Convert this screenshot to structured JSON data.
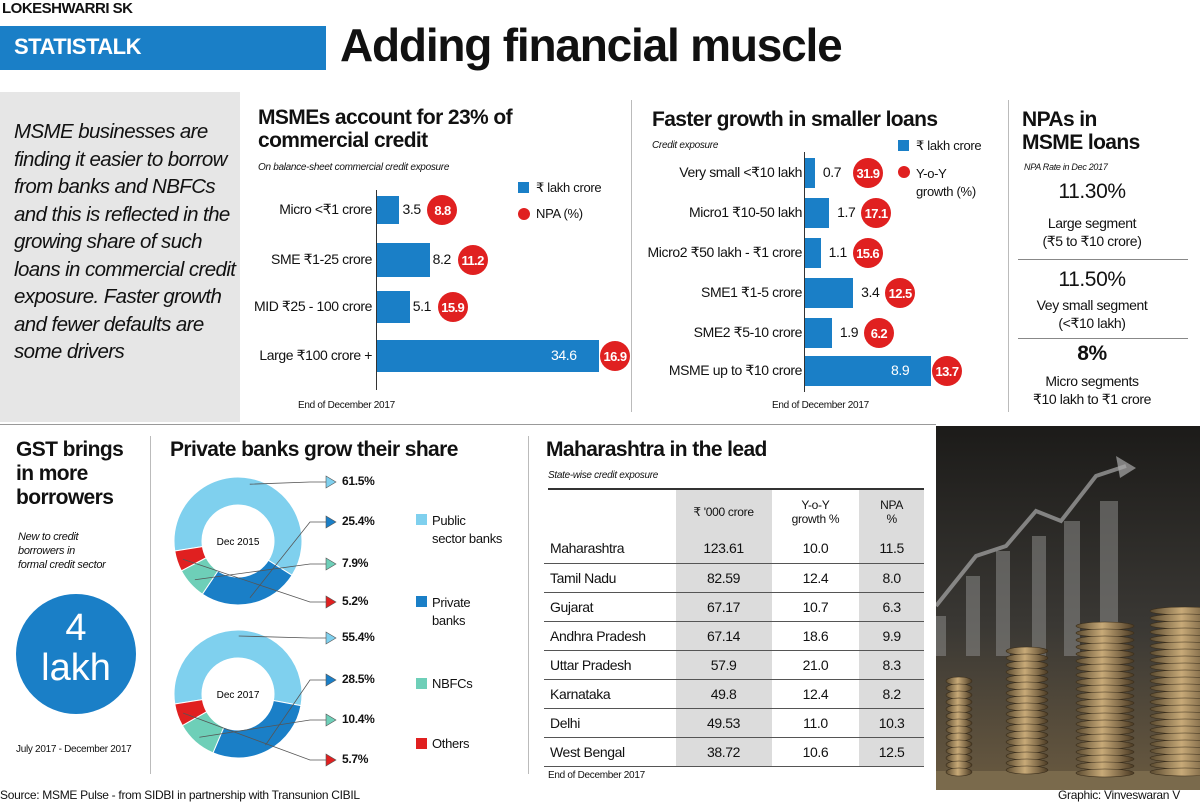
{
  "byline": "LOKESHWARRI SK",
  "tag": "STATISTALK",
  "headline": "Adding financial muscle",
  "intro": "MSME businesses are finding it easier to borrow from banks and NBFCs and this is reflected in the growing share of such loans in commercial credit exposure. Faster growth and fewer defaults are some drivers",
  "colors": {
    "blue": "#1a7fc7",
    "red": "#e02020",
    "light_blue": "#7fd0ee",
    "teal": "#6ecfb8"
  },
  "chart_data": [
    {
      "type": "bar",
      "title": "MSMEs account for 23% of commercial credit",
      "subtitle": "On balance-sheet commercial credit exposure",
      "categories": [
        "Micro <₹1 crore",
        "SME ₹1-25 crore",
        "MID ₹25 - 100 crore",
        "Large ₹100 crore +"
      ],
      "series": [
        {
          "name": "₹ lakh crore",
          "values": [
            3.5,
            8.2,
            5.1,
            34.6
          ]
        },
        {
          "name": "NPA (%)",
          "values": [
            8.8,
            11.2,
            15.9,
            16.9
          ]
        }
      ],
      "note": "End of December 2017"
    },
    {
      "type": "bar",
      "title": "Faster growth in smaller loans",
      "subtitle": "Credit exposure",
      "categories": [
        "Very small <₹10 lakh",
        "Micro1 ₹10-50 lakh",
        "Micro2 ₹50 lakh - ₹1 crore",
        "SME1 ₹1-5 crore",
        "SME2 ₹5-10 crore",
        "MSME up to ₹10 crore"
      ],
      "series": [
        {
          "name": "₹ lakh crore",
          "values": [
            0.7,
            1.7,
            1.1,
            3.4,
            1.9,
            8.9
          ]
        },
        {
          "name": "Y-o-Y growth (%)",
          "values": [
            31.9,
            17.1,
            15.6,
            12.5,
            6.2,
            13.7
          ]
        }
      ],
      "note": "End of December 2017"
    },
    {
      "type": "pie",
      "title": "Private banks grow their share",
      "charts": [
        {
          "label": "Dec 2015",
          "slices": [
            {
              "name": "Public sector banks",
              "value": 61.5,
              "label": "61.5%"
            },
            {
              "name": "Private banks",
              "value": 25.4,
              "label": "25.4%"
            },
            {
              "name": "NBFCs",
              "value": 7.9,
              "label": "7.9%"
            },
            {
              "name": "Others",
              "value": 5.2,
              "label": "5.2%"
            }
          ]
        },
        {
          "label": "Dec 2017",
          "slices": [
            {
              "name": "Public sector banks",
              "value": 55.4,
              "label": "55.4%"
            },
            {
              "name": "Private banks",
              "value": 28.5,
              "label": "28.5%"
            },
            {
              "name": "NBFCs",
              "value": 10.4,
              "label": "10.4%"
            },
            {
              "name": "Others",
              "value": 5.7,
              "label": "5.7%"
            }
          ]
        }
      ],
      "legend": [
        "Public sector banks",
        "Private banks",
        "NBFCs",
        "Others"
      ]
    },
    {
      "type": "table",
      "title": "Maharashtra in the lead",
      "subtitle": "State-wise credit exposure",
      "columns": [
        "₹ '000 crore",
        "Y-o-Y growth %",
        "NPA %"
      ],
      "rows": [
        [
          "Maharashtra",
          "123.61",
          "10.0",
          "11.5"
        ],
        [
          "Tamil Nadu",
          "82.59",
          "12.4",
          "8.0"
        ],
        [
          "Gujarat",
          "67.17",
          "10.7",
          "6.3"
        ],
        [
          "Andhra Pradesh",
          "67.14",
          "18.6",
          "9.9"
        ],
        [
          "Uttar Pradesh",
          "57.9",
          "21.0",
          "8.3"
        ],
        [
          "Karnataka",
          "49.8",
          "12.4",
          "8.2"
        ],
        [
          "Delhi",
          "49.53",
          "11.0",
          "10.3"
        ],
        [
          "West Bengal",
          "38.72",
          "10.6",
          "12.5"
        ]
      ],
      "note": "End of December 2017"
    }
  ],
  "npa": {
    "title1": "NPAs in",
    "title2": "MSME loans",
    "subtitle": "NPA Rate in Dec 2017",
    "items": [
      {
        "pct": "11.30%",
        "l1": "Large segment",
        "l2": "(₹5 to ₹10 crore)"
      },
      {
        "pct": "11.50%",
        "l1": "Vey small segment",
        "l2": "(<₹10 lakh)"
      },
      {
        "pct": "8%",
        "l1": "Micro segments",
        "l2": "₹10 lakh to ₹1 crore"
      }
    ]
  },
  "gst": {
    "title1": "GST brings",
    "title2": "in more",
    "title3": "borrowers",
    "sub1": "New to credit",
    "sub2": "borrowers in",
    "sub3": "formal credit sector",
    "big1": "4",
    "big2": "lakh",
    "period": "July 2017 - December 2017"
  },
  "legend_parts": {
    "public1": "Public",
    "public2": "sector banks",
    "private1": "Private",
    "private2": "banks",
    "nbfc": "NBFCs",
    "others": "Others",
    "lakh": "₹ lakh crore",
    "npa": "NPA (%)",
    "yoy1": "Y-o-Y",
    "yoy2": "growth (%)"
  },
  "table_heads": {
    "c1": "₹ '000 crore",
    "c2a": "Y-o-Y",
    "c2b": "growth %",
    "c3a": "NPA",
    "c3b": "%"
  },
  "source": "Source: MSME Pulse - from SIDBI in partnership with Transunion CIBIL",
  "graphic": "Graphic: Vinveswaran V"
}
